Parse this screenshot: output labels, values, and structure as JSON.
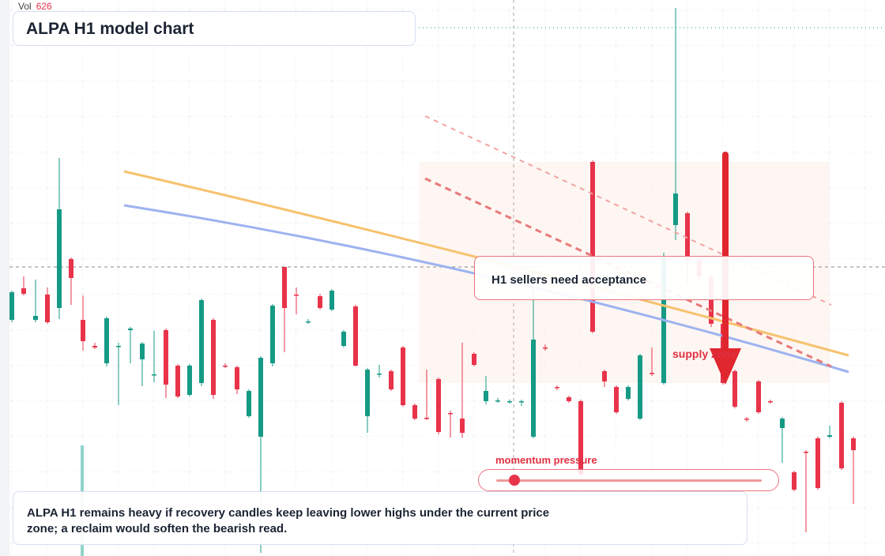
{
  "chart_data": {
    "type": "candlestick",
    "title": "ALPA H1 model chart",
    "volume_label": "Vol",
    "volume": 626,
    "annotations": [
      "H1 sellers need acceptance",
      "supply zone",
      "momentum pressure",
      "ALPA H1 remains heavy if recovery candles keep leaving lower highs under the current price zone; a reclaim would soften the bearish read."
    ],
    "up_color": "#159a85",
    "down_color": "#e8334a",
    "ylim": [
      0,
      704
    ],
    "open": [
      299,
      339,
      299,
      331,
      314,
      376,
      299,
      266,
      244,
      265,
      286,
      249,
      229,
      286,
      241,
      204,
      219,
      299,
      241,
      239,
      177,
      151,
      244,
      366,
      331,
      296,
      329,
      312,
      266,
      316,
      177,
      230,
      234,
      264,
      191,
      175,
      224,
      181,
      174,
      256,
      196,
      196,
      195,
      195,
      151,
      264,
      214,
      201,
      196,
      499,
      234,
      214,
      199,
      174,
      232,
      219,
      419,
      434,
      374,
      354,
      294,
      234,
      174,
      221,
      196,
      162,
      106,
      132,
      149,
      151,
      194,
      149
    ],
    "high": [
      336,
      354,
      350,
      340,
      504,
      378,
      330,
      270,
      303,
      270,
      290,
      271,
      285,
      288,
      243,
      243,
      326,
      301,
      244,
      241,
      211,
      253,
      319,
      366,
      340,
      300,
      332,
      338,
      286,
      318,
      238,
      242,
      236,
      266,
      193,
      236,
      226,
      184,
      270,
      258,
      228,
      200,
      198,
      198,
      360,
      268,
      216,
      203,
      198,
      501,
      236,
      216,
      216,
      256,
      264,
      384,
      694,
      436,
      376,
      356,
      296,
      236,
      176,
      223,
      198,
      176,
      108,
      134,
      151,
      165,
      196,
      151
    ],
    "low": [
      296,
      330,
      296,
      294,
      300,
      318,
      260,
      262,
      240,
      191,
      244,
      215,
      220,
      200,
      200,
      202,
      215,
      199,
      238,
      205,
      175,
      4,
      240,
      258,
      306,
      294,
      312,
      310,
      264,
      240,
      156,
      226,
      209,
      189,
      172,
      172,
      154,
      150,
      150,
      240,
      192,
      194,
      193,
      190,
      149,
      260,
      210,
      194,
      100,
      282,
      214,
      180,
      197,
      172,
      228,
      217,
      400,
      344,
      350,
      290,
      217,
      187,
      170,
      180,
      193,
      118,
      82,
      30,
      84,
      149,
      109,
      66
    ],
    "close": [
      334,
      332,
      304,
      296,
      439,
      352,
      272,
      264,
      301,
      266,
      288,
      269,
      230,
      217,
      202,
      241,
      324,
      204,
      240,
      211,
      209,
      251,
      317,
      314,
      330,
      297,
      314,
      336,
      284,
      241,
      236,
      231,
      211,
      191,
      174,
      174,
      157,
      180,
      156,
      242,
      209,
      197,
      196,
      196,
      274,
      263,
      213,
      196,
      104,
      284,
      221,
      182,
      214,
      254,
      231,
      379,
      459,
      374,
      354,
      294,
      219,
      189,
      173,
      182,
      195,
      174,
      84,
      131,
      86,
      153,
      111,
      134
    ]
  }
}
